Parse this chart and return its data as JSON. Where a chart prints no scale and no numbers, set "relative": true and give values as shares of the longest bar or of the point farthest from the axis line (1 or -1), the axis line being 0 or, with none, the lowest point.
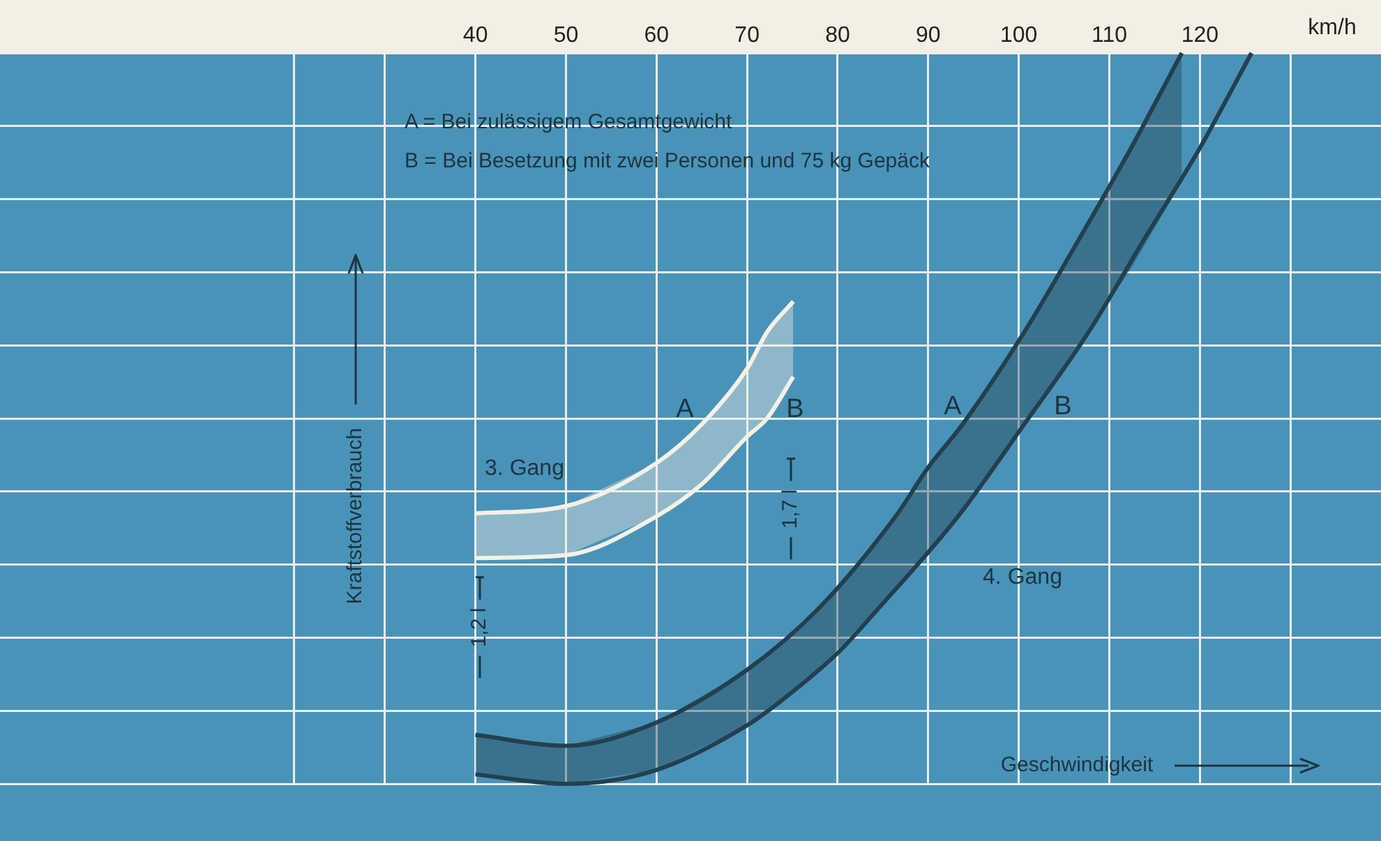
{
  "chart_data": {
    "type": "line",
    "relative": true,
    "xlabel": "Geschwindigkeit",
    "ylabel": "Kraftstoffverbrauch",
    "xlim": [
      -12.5,
      140
    ],
    "xticks": [
      {
        "value": 20,
        "label": null
      },
      {
        "value": 30,
        "label": null
      },
      40,
      50,
      60,
      70,
      80,
      90,
      100,
      110,
      120,
      {
        "value": 130,
        "label": null
      }
    ],
    "grid": true,
    "legend": false,
    "marker": "none",
    "line_style": "solid",
    "series": [
      {
        "color": "#f4f1e6",
        "x": [
          40,
          50,
          60,
          65,
          70,
          72.2,
          75.1
        ],
        "values": [
          0.37,
          0.38,
          0.439,
          0.492,
          0.568,
          0.618,
          0.66
        ],
        "lower": [
          0.309,
          0.313,
          0.366,
          0.41,
          0.475,
          0.5,
          0.557
        ],
        "upper": [
          0.37,
          0.38,
          0.439,
          0.492,
          0.568,
          0.618,
          0.66
        ]
      },
      {
        "color": "#f4f1e6",
        "x": [
          40,
          50,
          60,
          65,
          70,
          72.2,
          75.1
        ],
        "values": [
          0.309,
          0.313,
          0.366,
          0.41,
          0.475,
          0.5,
          0.557
        ]
      },
      {
        "color": "#23404f",
        "x": [
          40,
          50,
          60,
          70,
          77.9,
          86.4,
          90,
          93.8,
          100.6,
          106.6,
          112.4,
          118
        ],
        "values": [
          0.067,
          0.052,
          0.084,
          0.156,
          0.24,
          0.366,
          0.433,
          0.492,
          0.618,
          0.744,
          0.87,
          1
        ],
        "lower": [
          0.013,
          0,
          0.019,
          0.08,
          0.157,
          0.267,
          0.318,
          0.378,
          0.492,
          0.598,
          0.705,
          0.825
        ],
        "upper": [
          0.067,
          0.052,
          0.084,
          0.156,
          0.24,
          0.366,
          0.433,
          0.492,
          0.618,
          0.744,
          0.87,
          1
        ]
      },
      {
        "color": "#23404f",
        "x": [
          40,
          50,
          60,
          70,
          73.7,
          80,
          84.5,
          93.3,
          100.6,
          107.7,
          113.8,
          120,
          125.7
        ],
        "values": [
          0.013,
          0,
          0.019,
          0.08,
          0.113,
          0.179,
          0.24,
          0.366,
          0.492,
          0.618,
          0.744,
          0.87,
          1
        ]
      }
    ],
    "annotations": [
      "A = Bei zulässigem Gesamtgewicht",
      "B = Bei Besetzung mit zwei Personen und 75 kg Gepäck",
      "km/h",
      "3. Gang",
      "4. Gang",
      "A",
      "B",
      "A",
      "B",
      "1,2 l",
      "1,7 l"
    ]
  }
}
